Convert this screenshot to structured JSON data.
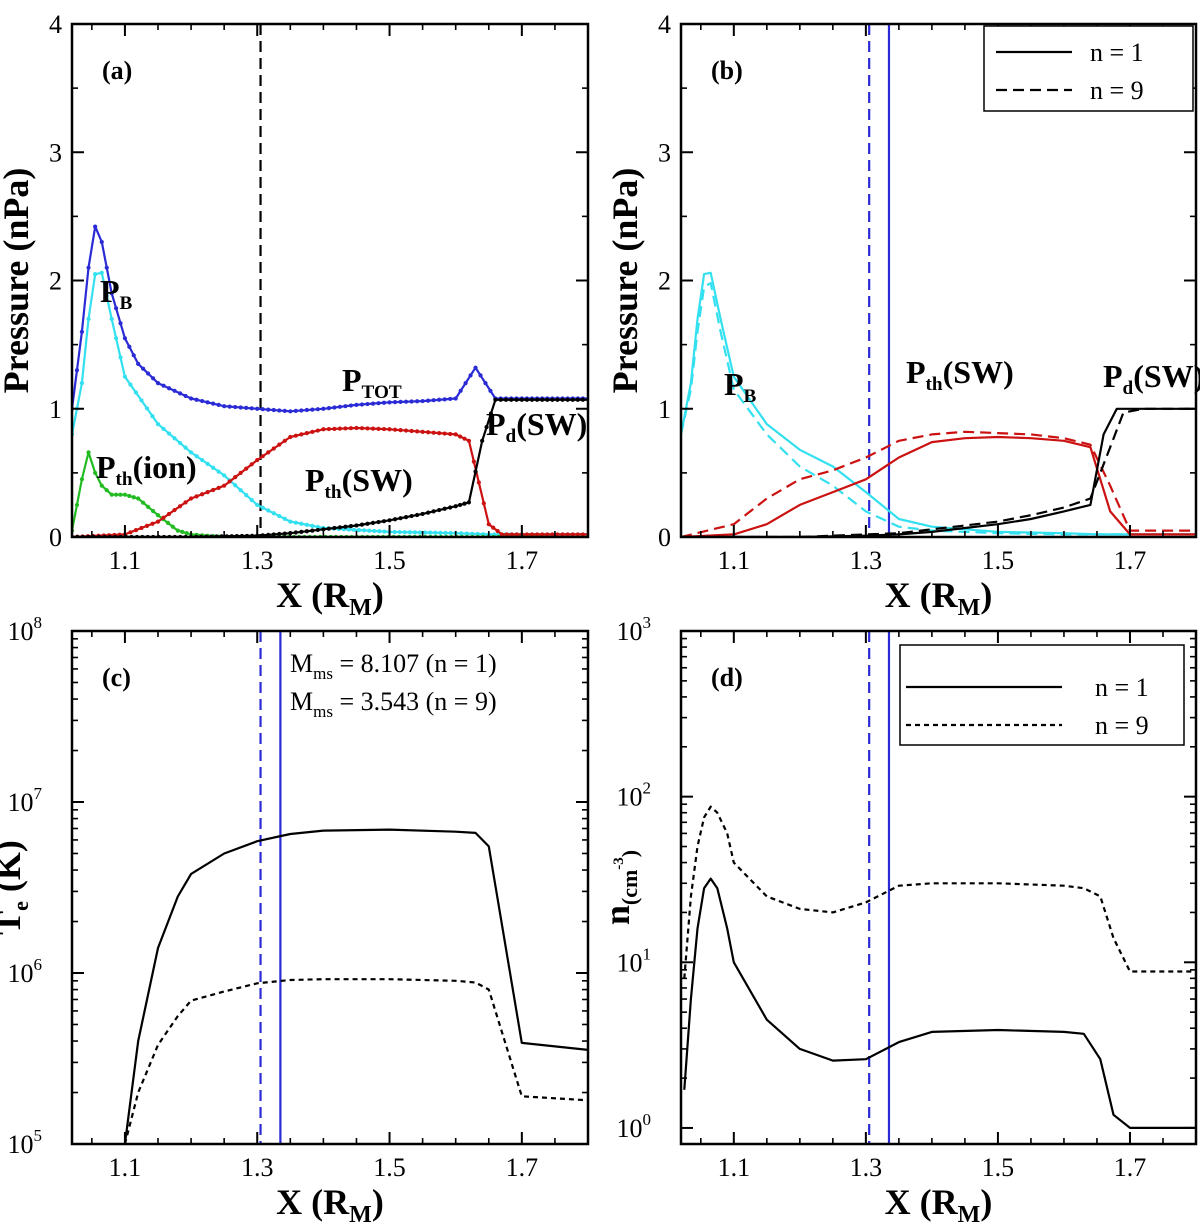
{
  "chart_data": [
    {
      "panel": "(a)",
      "type": "line",
      "xlabel": "X (R",
      "xlabel_sub": "M",
      "xlabel_close": ")",
      "ylabel": "Pressure (nPa)",
      "xlim": [
        1.02,
        1.8
      ],
      "ylim": [
        0,
        4
      ],
      "xticks": [
        "1.1",
        "1.3",
        "1.5",
        "1.7"
      ],
      "yticks": [
        "0",
        "1",
        "2",
        "3",
        "4"
      ],
      "vlines": [
        {
          "x": 1.305,
          "style": "dashed",
          "color": "#000000"
        }
      ],
      "series": [
        {
          "name": "P_TOT",
          "color": "#2b2bd6",
          "markers": true,
          "x": [
            1.02,
            1.035,
            1.045,
            1.055,
            1.065,
            1.08,
            1.1,
            1.12,
            1.15,
            1.2,
            1.25,
            1.3,
            1.35,
            1.4,
            1.45,
            1.5,
            1.55,
            1.6,
            1.63,
            1.66,
            1.7,
            1.8
          ],
          "y": [
            1.0,
            1.6,
            2.1,
            2.42,
            2.3,
            1.9,
            1.55,
            1.35,
            1.2,
            1.08,
            1.02,
            1.0,
            0.98,
            1.0,
            1.03,
            1.05,
            1.06,
            1.08,
            1.32,
            1.08,
            1.08,
            1.08
          ]
        },
        {
          "name": "P_B",
          "color": "#33e0f0",
          "markers": true,
          "x": [
            1.02,
            1.035,
            1.045,
            1.055,
            1.065,
            1.08,
            1.1,
            1.15,
            1.2,
            1.25,
            1.3,
            1.35,
            1.4,
            1.5,
            1.6,
            1.65,
            1.7,
            1.8
          ],
          "y": [
            0.8,
            1.2,
            1.7,
            2.05,
            2.06,
            1.7,
            1.25,
            0.88,
            0.66,
            0.48,
            0.25,
            0.12,
            0.07,
            0.04,
            0.03,
            0.02,
            0.02,
            0.02
          ]
        },
        {
          "name": "P_th(ion)",
          "color": "#22bb22",
          "markers": true,
          "x": [
            1.02,
            1.035,
            1.045,
            1.055,
            1.065,
            1.08,
            1.1,
            1.12,
            1.15,
            1.18,
            1.2,
            1.25,
            1.3,
            1.8
          ],
          "y": [
            0.05,
            0.45,
            0.66,
            0.5,
            0.4,
            0.33,
            0.33,
            0.3,
            0.17,
            0.05,
            0.02,
            0.0,
            0.0,
            0.0
          ]
        },
        {
          "name": "P_th(SW)",
          "color": "#cc1111",
          "markers": true,
          "x": [
            1.02,
            1.1,
            1.15,
            1.2,
            1.25,
            1.3,
            1.35,
            1.4,
            1.45,
            1.5,
            1.55,
            1.6,
            1.62,
            1.65,
            1.67,
            1.7,
            1.8
          ],
          "y": [
            0.0,
            0.02,
            0.12,
            0.3,
            0.4,
            0.6,
            0.78,
            0.84,
            0.85,
            0.84,
            0.82,
            0.8,
            0.75,
            0.1,
            0.02,
            0.02,
            0.02
          ]
        },
        {
          "name": "P_d(SW)",
          "color": "#000000",
          "markers": true,
          "x": [
            1.02,
            1.2,
            1.3,
            1.35,
            1.4,
            1.45,
            1.5,
            1.55,
            1.6,
            1.62,
            1.64,
            1.66,
            1.7,
            1.8
          ],
          "y": [
            0.0,
            0.0,
            0.01,
            0.03,
            0.06,
            0.09,
            0.13,
            0.18,
            0.24,
            0.27,
            0.75,
            1.07,
            1.07,
            1.07
          ]
        }
      ],
      "annotations": [
        {
          "text": "P",
          "sub": "TOT",
          "color": "#2b2bd6"
        },
        {
          "text": "P",
          "sub": "B",
          "color": "#33e0f0"
        },
        {
          "text": "P",
          "sub": "th",
          "tail": "(ion)",
          "color": "#22bb22"
        },
        {
          "text": "P",
          "sub": "th",
          "tail": "(SW)",
          "color": "#cc1111"
        },
        {
          "text": "P",
          "sub": "d",
          "tail": "(SW)",
          "color": "#000000"
        }
      ]
    },
    {
      "panel": "(b)",
      "type": "line",
      "xlabel": "X (R",
      "xlabel_sub": "M",
      "xlabel_close": ")",
      "ylabel": "Pressure (nPa)",
      "xlim": [
        1.02,
        1.8
      ],
      "ylim": [
        0,
        4
      ],
      "xticks": [
        "1.1",
        "1.3",
        "1.5",
        "1.7"
      ],
      "yticks": [
        "0",
        "1",
        "2",
        "3",
        "4"
      ],
      "legend": [
        {
          "label": "n = 1",
          "style": "solid"
        },
        {
          "label": "n = 9",
          "style": "dashed"
        }
      ],
      "legend_position": "top-right",
      "vlines": [
        {
          "x": 1.305,
          "style": "dashed",
          "color": "#2b2bd6"
        },
        {
          "x": 1.335,
          "style": "solid",
          "color": "#2b2bd6"
        }
      ],
      "series": [
        {
          "name": "P_B (n = 1)",
          "color": "#33e0f0",
          "style": "solid",
          "x": [
            1.02,
            1.035,
            1.045,
            1.055,
            1.065,
            1.08,
            1.1,
            1.15,
            1.2,
            1.25,
            1.3,
            1.35,
            1.4,
            1.5,
            1.6,
            1.65,
            1.7,
            1.8
          ],
          "y": [
            0.8,
            1.2,
            1.7,
            2.05,
            2.06,
            1.7,
            1.25,
            0.88,
            0.68,
            0.55,
            0.35,
            0.14,
            0.08,
            0.04,
            0.03,
            0.02,
            0.02,
            0.02
          ]
        },
        {
          "name": "P_B (n = 9)",
          "color": "#33e0f0",
          "style": "dashed",
          "x": [
            1.02,
            1.035,
            1.045,
            1.055,
            1.065,
            1.08,
            1.1,
            1.15,
            1.2,
            1.25,
            1.3,
            1.35,
            1.4,
            1.5,
            1.6,
            1.8
          ],
          "y": [
            0.8,
            1.15,
            1.6,
            1.95,
            1.98,
            1.6,
            1.15,
            0.8,
            0.55,
            0.4,
            0.2,
            0.08,
            0.05,
            0.03,
            0.02,
            0.02
          ]
        },
        {
          "name": "P_th(SW) (n = 1)",
          "color": "#cc1111",
          "style": "solid",
          "x": [
            1.02,
            1.1,
            1.15,
            1.2,
            1.25,
            1.3,
            1.35,
            1.4,
            1.45,
            1.5,
            1.55,
            1.6,
            1.64,
            1.67,
            1.7,
            1.8
          ],
          "y": [
            0.0,
            0.02,
            0.1,
            0.25,
            0.35,
            0.45,
            0.62,
            0.74,
            0.77,
            0.78,
            0.77,
            0.75,
            0.7,
            0.2,
            0.02,
            0.02
          ]
        },
        {
          "name": "P_th(SW) (n = 9)",
          "color": "#cc1111",
          "style": "dashed",
          "x": [
            1.02,
            1.1,
            1.15,
            1.2,
            1.25,
            1.3,
            1.35,
            1.4,
            1.45,
            1.5,
            1.55,
            1.6,
            1.64,
            1.67,
            1.7,
            1.8
          ],
          "y": [
            0.0,
            0.1,
            0.3,
            0.45,
            0.52,
            0.62,
            0.75,
            0.8,
            0.82,
            0.81,
            0.8,
            0.77,
            0.72,
            0.4,
            0.05,
            0.05
          ]
        },
        {
          "name": "P_d(SW) (n = 1)",
          "color": "#000000",
          "style": "solid",
          "x": [
            1.02,
            1.2,
            1.3,
            1.35,
            1.4,
            1.45,
            1.5,
            1.55,
            1.6,
            1.64,
            1.66,
            1.68,
            1.7,
            1.8
          ],
          "y": [
            0.0,
            0.0,
            0.01,
            0.02,
            0.04,
            0.07,
            0.1,
            0.14,
            0.2,
            0.25,
            0.8,
            1.0,
            1.0,
            1.0
          ]
        },
        {
          "name": "P_d(SW) (n = 9)",
          "color": "#000000",
          "style": "dashed",
          "x": [
            1.02,
            1.2,
            1.3,
            1.35,
            1.4,
            1.45,
            1.5,
            1.55,
            1.6,
            1.64,
            1.67,
            1.69,
            1.72,
            1.8
          ],
          "y": [
            0.0,
            0.0,
            0.02,
            0.03,
            0.06,
            0.09,
            0.12,
            0.17,
            0.23,
            0.3,
            0.7,
            0.97,
            1.0,
            1.0
          ]
        }
      ],
      "annotations": [
        {
          "text": "P",
          "sub": "B",
          "color": "#33e0f0"
        },
        {
          "text": "P",
          "sub": "th",
          "tail": "(SW)",
          "color": "#cc1111"
        },
        {
          "text": "P",
          "sub": "d",
          "tail": "(SW)",
          "color": "#000000"
        }
      ]
    },
    {
      "panel": "(c)",
      "type": "line",
      "xlabel": "X (R",
      "xlabel_sub": "M",
      "xlabel_close": ")",
      "ylabel": "T",
      "ylabel_sub": "e",
      "ylabel_tail": " (K)",
      "yscale": "log",
      "xlim": [
        1.02,
        1.8
      ],
      "ylim": [
        100000,
        100000000
      ],
      "xticks": [
        "1.1",
        "1.3",
        "1.5",
        "1.7"
      ],
      "ytick_mantissa": "10",
      "ytick_exponents": [
        "5",
        "6",
        "7",
        "8"
      ],
      "vlines": [
        {
          "x": 1.305,
          "style": "dashed",
          "color": "#2b2bd6"
        },
        {
          "x": 1.335,
          "style": "solid",
          "color": "#2b2bd6"
        }
      ],
      "text_lines": [
        {
          "pre": "M",
          "sub": "ms",
          "post": " = 8.107 (n = 1)"
        },
        {
          "pre": "M",
          "sub": "ms",
          "post": " = 3.543 (n = 9)"
        }
      ],
      "series": [
        {
          "name": "n = 1",
          "color": "#000000",
          "style": "solid",
          "x": [
            1.1,
            1.12,
            1.15,
            1.18,
            1.2,
            1.25,
            1.3,
            1.35,
            1.4,
            1.5,
            1.6,
            1.63,
            1.65,
            1.7,
            1.8
          ],
          "y": [
            100000,
            400000,
            1400000,
            2800000,
            3800000,
            5000000,
            5900000,
            6500000,
            6800000,
            6900000,
            6700000,
            6600000,
            5500000,
            390000,
            355000
          ]
        },
        {
          "name": "n = 9",
          "color": "#000000",
          "style": "dotted",
          "x": [
            1.1,
            1.12,
            1.15,
            1.18,
            1.2,
            1.25,
            1.3,
            1.35,
            1.4,
            1.5,
            1.6,
            1.63,
            1.65,
            1.7,
            1.8
          ],
          "y": [
            100000,
            200000,
            380000,
            560000,
            690000,
            780000,
            870000,
            910000,
            920000,
            920000,
            900000,
            880000,
            800000,
            190000,
            180000
          ]
        }
      ]
    },
    {
      "panel": "(d)",
      "type": "line",
      "xlabel": "X (R",
      "xlabel_sub": "M",
      "xlabel_close": ")",
      "ylabel": "n",
      "ylabel_sub": "(cm",
      "ylabel_sup": "-3",
      "ylabel_tail": ")",
      "yscale": "log",
      "xlim": [
        1.02,
        1.8
      ],
      "ylim": [
        0.8,
        1000
      ],
      "xticks": [
        "1.1",
        "1.3",
        "1.5",
        "1.7"
      ],
      "ytick_mantissa": "10",
      "ytick_exponents": [
        "0",
        "1",
        "2",
        "3"
      ],
      "legend": [
        {
          "label": "n = 1",
          "style": "solid"
        },
        {
          "label": "n = 9",
          "style": "dotted"
        }
      ],
      "legend_position": "top-right",
      "vlines": [
        {
          "x": 1.305,
          "style": "dashed",
          "color": "#2b2bd6"
        },
        {
          "x": 1.335,
          "style": "solid",
          "color": "#2b2bd6"
        }
      ],
      "series": [
        {
          "name": "n = 1",
          "color": "#000000",
          "style": "solid",
          "x": [
            1.025,
            1.035,
            1.045,
            1.055,
            1.065,
            1.075,
            1.09,
            1.1,
            1.15,
            1.2,
            1.25,
            1.3,
            1.35,
            1.4,
            1.5,
            1.6,
            1.63,
            1.655,
            1.675,
            1.7,
            1.8
          ],
          "y": [
            1.7,
            6.0,
            16,
            28,
            32,
            28,
            16,
            10,
            4.5,
            3.0,
            2.55,
            2.6,
            3.3,
            3.8,
            3.9,
            3.8,
            3.7,
            2.6,
            1.2,
            1.0,
            1.0
          ]
        },
        {
          "name": "n = 9",
          "color": "#000000",
          "style": "dotted",
          "x": [
            1.025,
            1.035,
            1.045,
            1.055,
            1.065,
            1.075,
            1.09,
            1.1,
            1.15,
            1.2,
            1.25,
            1.3,
            1.35,
            1.4,
            1.5,
            1.6,
            1.63,
            1.655,
            1.675,
            1.7,
            1.8
          ],
          "y": [
            8.0,
            25,
            50,
            75,
            87,
            80,
            60,
            40,
            25,
            21,
            20,
            23,
            29,
            30,
            30,
            29,
            28,
            25,
            14,
            8.8,
            8.8
          ]
        }
      ]
    }
  ]
}
